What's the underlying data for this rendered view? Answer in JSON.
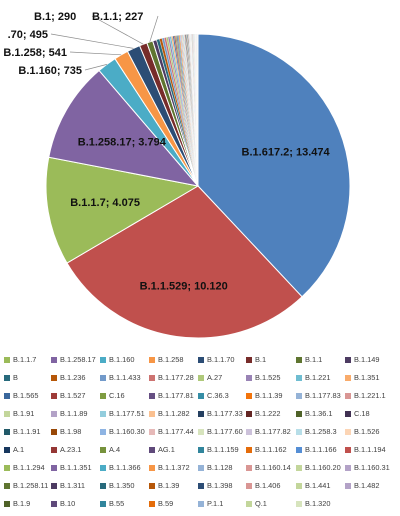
{
  "chart_data": {
    "type": "pie",
    "title": "",
    "slices": [
      {
        "label": "B.1.617.2",
        "value": 13474,
        "display": "B.1.617.2; 13.474",
        "color": "#4f81bd"
      },
      {
        "label": "B.1.1.529",
        "value": 10120,
        "display": "B.1.1.529; 10.120",
        "color": "#c0504d"
      },
      {
        "label": "B.1.1.7",
        "value": 4075,
        "display": "B.1.1.7; 4.075",
        "color": "#9bbb59"
      },
      {
        "label": "B.1.258.17",
        "value": 3794,
        "display": "B.1.258.17; 3.794",
        "color": "#8064a2"
      },
      {
        "label": "B.1.160",
        "value": 735,
        "display": "B.1.160; 735",
        "color": "#4bacc6"
      },
      {
        "label": "B.1.258",
        "value": 541,
        "display": "B.1.258; 541",
        "color": "#f79646"
      },
      {
        "label": "B.1.1.70",
        "value": 495,
        "display": ".70; 495",
        "color": "#2c4d75"
      },
      {
        "label": "B.1",
        "value": 290,
        "display": "B.1; 290",
        "color": "#772c2a"
      },
      {
        "label": "B.1.1",
        "value": 227,
        "display": "B.1.1; 227",
        "color": "#5f7530"
      },
      {
        "label": "B.1.149",
        "value": 150,
        "color": "#4d3b62"
      },
      {
        "label": "B",
        "value": 110,
        "color": "#276a7c"
      },
      {
        "label": "B.1.236",
        "value": 95,
        "color": "#b65708"
      },
      {
        "label": "B.1.1.433",
        "value": 85,
        "color": "#729aca"
      },
      {
        "label": "B.1.177.28",
        "value": 75,
        "color": "#cd7371"
      },
      {
        "label": "A.27",
        "value": 70,
        "color": "#afc97a"
      },
      {
        "label": "B.1.525",
        "value": 65,
        "color": "#9983b5"
      },
      {
        "label": "B.1.221",
        "value": 60,
        "color": "#6fbdd1"
      },
      {
        "label": "B.1.351",
        "value": 55,
        "color": "#f9ab6b"
      },
      {
        "label": "B.1.565",
        "value": 50,
        "color": "#3a679c"
      },
      {
        "label": "B.1.527",
        "value": 46,
        "color": "#9e3b38"
      },
      {
        "label": "C.16",
        "value": 44,
        "color": "#7e9c40"
      },
      {
        "label": "B.1.177.81",
        "value": 42,
        "color": "#664f83"
      },
      {
        "label": "C.36.3",
        "value": 40,
        "color": "#358ea6"
      },
      {
        "label": "B.1.1.39",
        "value": 38,
        "color": "#f3740b"
      },
      {
        "label": "B.1.177.83",
        "value": 36,
        "color": "#95b3d7"
      },
      {
        "label": "B.1.221.1",
        "value": 34,
        "color": "#d99694"
      },
      {
        "label": "B.1.91",
        "value": 32,
        "color": "#c3d69b"
      },
      {
        "label": "B.1.1.89",
        "value": 30,
        "color": "#b3a2c7"
      },
      {
        "label": "B.1.177.51",
        "value": 29,
        "color": "#93cddd"
      },
      {
        "label": "B.1.1.282",
        "value": 28,
        "color": "#fac090"
      },
      {
        "label": "B.1.177.33",
        "value": 27,
        "color": "#254061"
      },
      {
        "label": "B.1.222",
        "value": 26,
        "color": "#632523"
      },
      {
        "label": "B.1.36.1",
        "value": 25,
        "color": "#4f6228"
      },
      {
        "label": "C.18",
        "value": 24,
        "color": "#403152"
      },
      {
        "label": "B.1.1.91",
        "value": 23,
        "color": "#215968"
      },
      {
        "label": "B.1.98",
        "value": 22,
        "color": "#984807"
      },
      {
        "label": "B.1.160.30",
        "value": 21,
        "color": "#8eb4e3"
      },
      {
        "label": "B.1.177.44",
        "value": 20,
        "color": "#e6b9b8"
      },
      {
        "label": "B.1.177.60",
        "value": 19,
        "color": "#d7e4bd"
      },
      {
        "label": "B.1.177.82",
        "value": 18,
        "color": "#ccc1da"
      },
      {
        "label": "B.1.258.3",
        "value": 17,
        "color": "#b7dee8"
      },
      {
        "label": "B.1.526",
        "value": 16,
        "color": "#fcd5b5"
      },
      {
        "label": "A.1",
        "value": 15,
        "color": "#17375e"
      },
      {
        "label": "A.23.1",
        "value": 14,
        "color": "#953735"
      },
      {
        "label": "A.4",
        "value": 13,
        "color": "#76923c"
      },
      {
        "label": "AG.1",
        "value": 12,
        "color": "#5f497a"
      },
      {
        "label": "B.1.1.159",
        "value": 12,
        "color": "#31859c"
      },
      {
        "label": "B.1.1.162",
        "value": 11,
        "color": "#e46c0a"
      },
      {
        "label": "B.1.1.166",
        "value": 11,
        "color": "#558ed5"
      },
      {
        "label": "B.1.1.194",
        "value": 10,
        "color": "#c0504d"
      },
      {
        "label": "B.1.1.294",
        "value": 10,
        "color": "#9bbb59"
      },
      {
        "label": "B.1.1.351",
        "value": 9,
        "color": "#8064a2"
      },
      {
        "label": "B.1.1.366",
        "value": 9,
        "color": "#4bacc6"
      },
      {
        "label": "B.1.1.372",
        "value": 8,
        "color": "#f79646"
      },
      {
        "label": "B.1.128",
        "value": 8,
        "color": "#95b3d7"
      },
      {
        "label": "B.1.160.14",
        "value": 8,
        "color": "#d99694"
      },
      {
        "label": "B.1.160.20",
        "value": 7,
        "color": "#c3d69b"
      },
      {
        "label": "B.1.160.31",
        "value": 7,
        "color": "#b3a2c7"
      },
      {
        "label": "B.1.258.11",
        "value": 7,
        "color": "#5f7530"
      },
      {
        "label": "B.1.311",
        "value": 6,
        "color": "#4d3b62"
      },
      {
        "label": "B.1.350",
        "value": 6,
        "color": "#276a7c"
      },
      {
        "label": "B.1.39",
        "value": 6,
        "color": "#b65708"
      },
      {
        "label": "B.1.398",
        "value": 6,
        "color": "#2c4d75"
      },
      {
        "label": "B.1.406",
        "value": 5,
        "color": "#d99694"
      },
      {
        "label": "B.1.441",
        "value": 5,
        "color": "#c3d69b"
      },
      {
        "label": "B.1.482",
        "value": 5,
        "color": "#b3a2c7"
      },
      {
        "label": "B.1.9",
        "value": 5,
        "color": "#4f6228"
      },
      {
        "label": "B.10",
        "value": 4,
        "color": "#5f497a"
      },
      {
        "label": "B.55",
        "value": 4,
        "color": "#31859c"
      },
      {
        "label": "B.59",
        "value": 4,
        "color": "#e46c0a"
      },
      {
        "label": "P.1.1",
        "value": 3,
        "color": "#95b3d7"
      },
      {
        "label": "Q.1",
        "value": 3,
        "color": "#c3d69b"
      },
      {
        "label": "B.1.320",
        "value": 3,
        "color": "#d7e4bd"
      }
    ],
    "legend": {
      "position": "bottom",
      "rows": [
        [
          "B.1.1.7",
          "B.1.258.17",
          "B.1.160",
          "B.1.258",
          "B.1.1.70",
          "B.1",
          "B.1.1",
          "B.1.149"
        ],
        [
          "B",
          "B.1.236",
          "B.1.1.433",
          "B.1.177.28",
          "A.27",
          "B.1.525",
          "B.1.221",
          "B.1.351"
        ],
        [
          "B.1.565",
          "B.1.527",
          "C.16",
          "B.1.177.81",
          "C.36.3",
          "B.1.1.39",
          "B.1.177.83",
          "B.1.221.1"
        ],
        [
          "B.1.91",
          "B.1.1.89",
          "B.1.177.51",
          "B.1.1.282",
          "B.1.177.33",
          "B.1.222",
          "B.1.36.1",
          "C.18"
        ],
        [
          "B.1.1.91",
          "B.1.98",
          "B.1.160.30",
          "B.1.177.44",
          "B.1.177.60",
          "B.1.177.82",
          "B.1.258.3",
          "B.1.526"
        ],
        [
          "A.1",
          "A.23.1",
          "A.4",
          "AG.1",
          "B.1.1.159",
          "B.1.1.162",
          "B.1.1.166",
          "B.1.1.194"
        ],
        [
          "B.1.1.294",
          "B.1.1.351",
          "B.1.1.366",
          "B.1.1.372",
          "B.1.128",
          "B.1.160.14",
          "B.1.160.20",
          "B.1.160.31"
        ],
        [
          "B.1.258.11",
          "B.1.311",
          "B.1.350",
          "B.1.39",
          "B.1.398",
          "B.1.406",
          "B.1.441",
          "B.1.482"
        ],
        [
          "B.1.9",
          "B.10",
          "B.55",
          "B.59",
          "P.1.1",
          "Q.1",
          "B.1.320"
        ]
      ]
    }
  }
}
